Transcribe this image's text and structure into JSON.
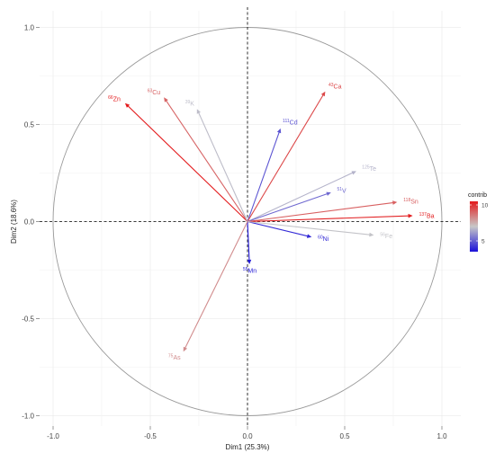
{
  "chart_data": {
    "type": "scatter",
    "subtype": "pca-variable-correlation-circle",
    "xlabel": "Dim1 (25.3%)",
    "ylabel": "Dim2 (18.6%)",
    "xlim": [
      -1.0,
      1.0
    ],
    "ylim": [
      -1.0,
      1.0
    ],
    "x_ticks": [
      "-1.0",
      "-0.5",
      "0.0",
      "0.5",
      "1.0"
    ],
    "y_ticks": [
      "-1.0",
      "-0.5",
      "0.0",
      "0.5",
      "1.0"
    ],
    "grid": true,
    "unit_circle": true,
    "legend": {
      "title": "contrib",
      "placement": "right",
      "ticks": [
        "5",
        "10"
      ],
      "range": [
        3.5,
        10.5
      ],
      "colors": {
        "low": "#1a10d8",
        "mid": "#c8c8c8",
        "high": "#e31a1c"
      }
    },
    "variables": [
      {
        "mass": "66",
        "element": "Zn",
        "x": -0.63,
        "y": 0.61,
        "contrib": 10.5
      },
      {
        "mass": "63",
        "element": "Cu",
        "x": -0.43,
        "y": 0.64,
        "contrib": 9.0
      },
      {
        "mass": "39",
        "element": "K",
        "x": -0.26,
        "y": 0.58,
        "contrib": 6.8
      },
      {
        "mass": "111",
        "element": "Cd",
        "x": 0.17,
        "y": 0.48,
        "contrib": 4.8
      },
      {
        "mass": "43",
        "element": "Ca",
        "x": 0.4,
        "y": 0.67,
        "contrib": 9.6
      },
      {
        "mass": "125",
        "element": "Te",
        "x": 0.56,
        "y": 0.26,
        "contrib": 6.6
      },
      {
        "mass": "51",
        "element": "V",
        "x": 0.43,
        "y": 0.15,
        "contrib": 5.2
      },
      {
        "mass": "118",
        "element": "Sn",
        "x": 0.77,
        "y": 0.1,
        "contrib": 9.1
      },
      {
        "mass": "137",
        "element": "Ba",
        "x": 0.85,
        "y": 0.03,
        "contrib": 10.4
      },
      {
        "mass": "60",
        "element": "Ni",
        "x": 0.33,
        "y": -0.08,
        "contrib": 4.0
      },
      {
        "mass": "56",
        "element": "Fe",
        "x": 0.65,
        "y": -0.07,
        "contrib": 6.9
      },
      {
        "mass": "55",
        "element": "Mn",
        "x": 0.01,
        "y": -0.22,
        "contrib": 3.7
      },
      {
        "mass": "75",
        "element": "As",
        "x": -0.33,
        "y": -0.67,
        "contrib": 8.2
      }
    ]
  }
}
